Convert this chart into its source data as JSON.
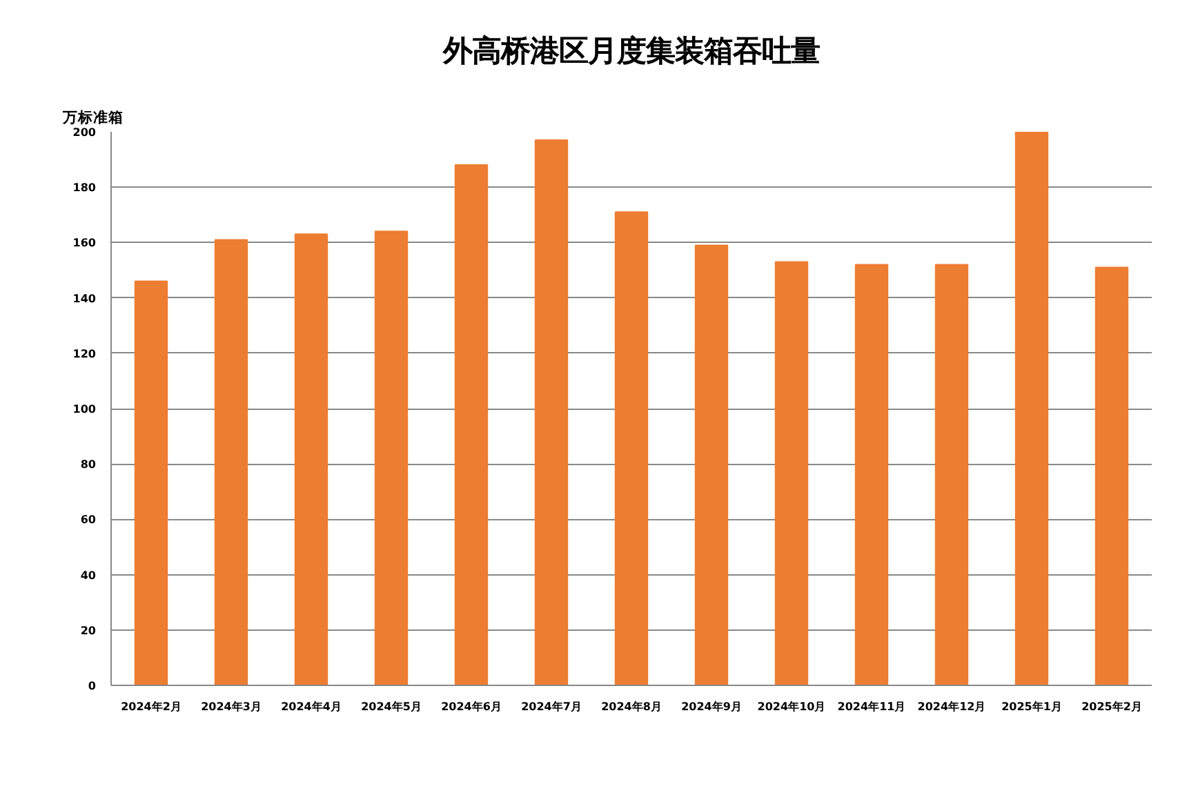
{
  "chart_data": {
    "type": "bar",
    "title": "外高桥港区月度集装箱吞吐量",
    "ylabel": "万标准箱",
    "categories": [
      "2024年2月",
      "2024年3月",
      "2024年4月",
      "2024年5月",
      "2024年6月",
      "2024年7月",
      "2024年8月",
      "2024年9月",
      "2024年10月",
      "2024年11月",
      "2024年12月",
      "2025年1月",
      "2025年2月"
    ],
    "values": [
      146,
      161,
      163,
      164,
      188,
      197,
      171,
      159,
      153,
      152,
      152,
      200,
      151
    ],
    "color": "#ed7d31",
    "ylim": [
      0,
      200
    ],
    "yticks": [
      0,
      20,
      40,
      60,
      80,
      100,
      120,
      140,
      160,
      180,
      200
    ],
    "grid": "y"
  }
}
